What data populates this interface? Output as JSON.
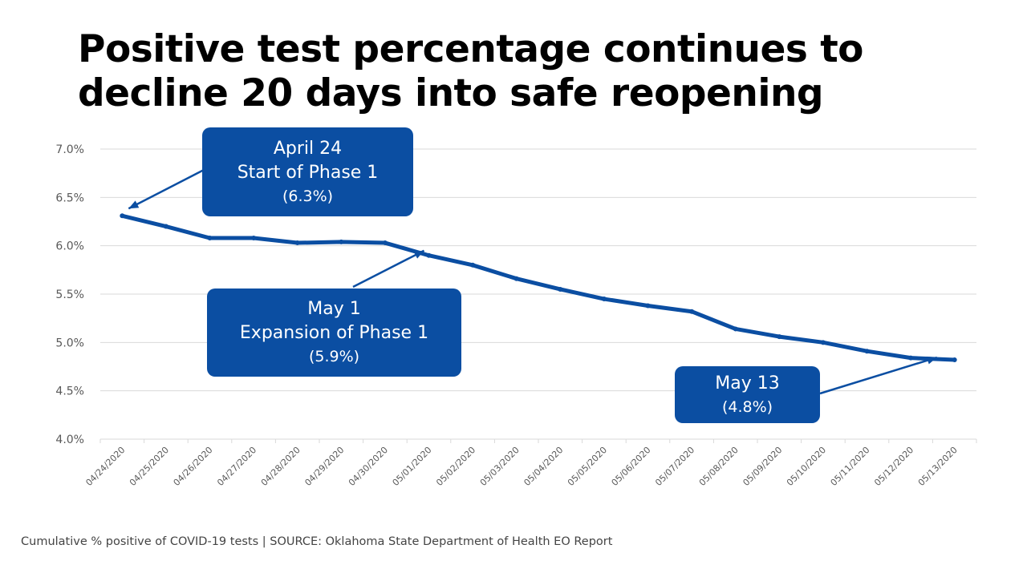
{
  "title_lines": [
    "Positive test percentage continues to",
    "decline 20 days into safe reopening"
  ],
  "callouts": [
    {
      "lines": [
        "April 24",
        "Start of Phase 1"
      ],
      "value": "(6.3%)"
    },
    {
      "lines": [
        "May 1",
        "Expansion of Phase 1"
      ],
      "value": "(5.9%)"
    },
    {
      "lines": [
        "May 13"
      ],
      "value": "(4.8%)"
    }
  ],
  "source": "Cumulative % positive of COVID-19 tests | SOURCE: Oklahoma State Department of Health EO Report",
  "colors": {
    "line": "#0b4ea2",
    "callout": "#0b4ea2",
    "grid": "#d9d9d9",
    "axis_text": "#595959"
  },
  "chart_data": {
    "type": "line",
    "title": "Positive test percentage continues to decline 20 days into safe reopening",
    "xlabel": "",
    "ylabel": "",
    "ylim": [
      4.0,
      7.0
    ],
    "yticks": [
      "4.0%",
      "4.5%",
      "5.0%",
      "5.5%",
      "6.0%",
      "6.5%",
      "7.0%"
    ],
    "ytick_values": [
      4.0,
      4.5,
      5.0,
      5.5,
      6.0,
      6.5,
      7.0
    ],
    "grid": true,
    "categories": [
      "04/24/2020",
      "04/25/2020",
      "04/26/2020",
      "04/27/2020",
      "04/28/2020",
      "04/29/2020",
      "04/30/2020",
      "05/01/2020",
      "05/02/2020",
      "05/03/2020",
      "05/04/2020",
      "05/05/2020",
      "05/06/2020",
      "05/07/2020",
      "05/08/2020",
      "05/09/2020",
      "05/10/2020",
      "05/11/2020",
      "05/12/2020",
      "05/13/2020"
    ],
    "series": [
      {
        "name": "Cumulative % positive",
        "values": [
          6.31,
          6.2,
          6.08,
          6.08,
          6.03,
          6.04,
          6.03,
          5.9,
          5.8,
          5.66,
          5.55,
          5.45,
          5.38,
          5.32,
          5.14,
          5.06,
          5.0,
          4.91,
          4.84,
          4.82
        ]
      }
    ]
  }
}
